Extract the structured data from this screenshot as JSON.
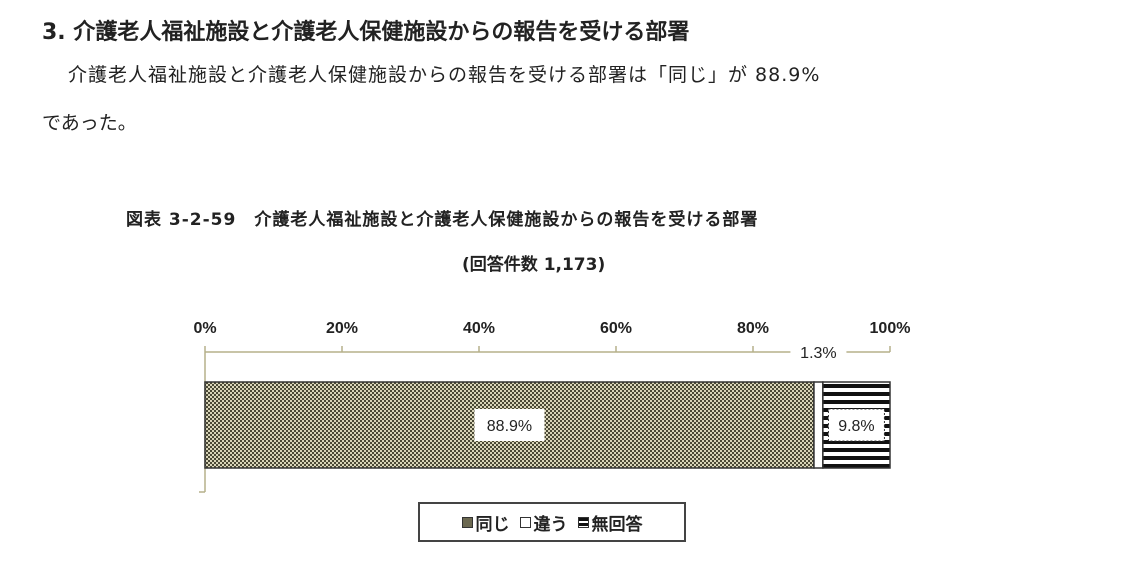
{
  "heading": "3. 介護老人福祉施設と介護老人保健施設からの報告を受ける部署",
  "body_line1": "介護老人福祉施設と介護老人保健施設からの報告を受ける部署は「同じ」が 88.9%",
  "body_line2": "であった。",
  "chart_data": {
    "type": "bar",
    "orientation": "horizontal-stacked-100",
    "title": "図表 3-2-59　介護老人福祉施設と介護老人保健施設からの報告を受ける部署",
    "subtitle": "(回答件数 1,173)",
    "xlim": [
      0,
      100
    ],
    "tick_labels": [
      "0%",
      "20%",
      "40%",
      "60%",
      "80%",
      "100%"
    ],
    "series": [
      {
        "name": "同じ",
        "value": 88.9,
        "label": "88.9%",
        "color": "#6b6850"
      },
      {
        "name": "違う",
        "value": 1.3,
        "label": "1.3%",
        "color": "#ffffff"
      },
      {
        "name": "無回答",
        "value": 9.8,
        "label": "9.8%",
        "color": "#111111"
      }
    ],
    "legend_position": "bottom",
    "axis_color": "#b5b08a"
  }
}
